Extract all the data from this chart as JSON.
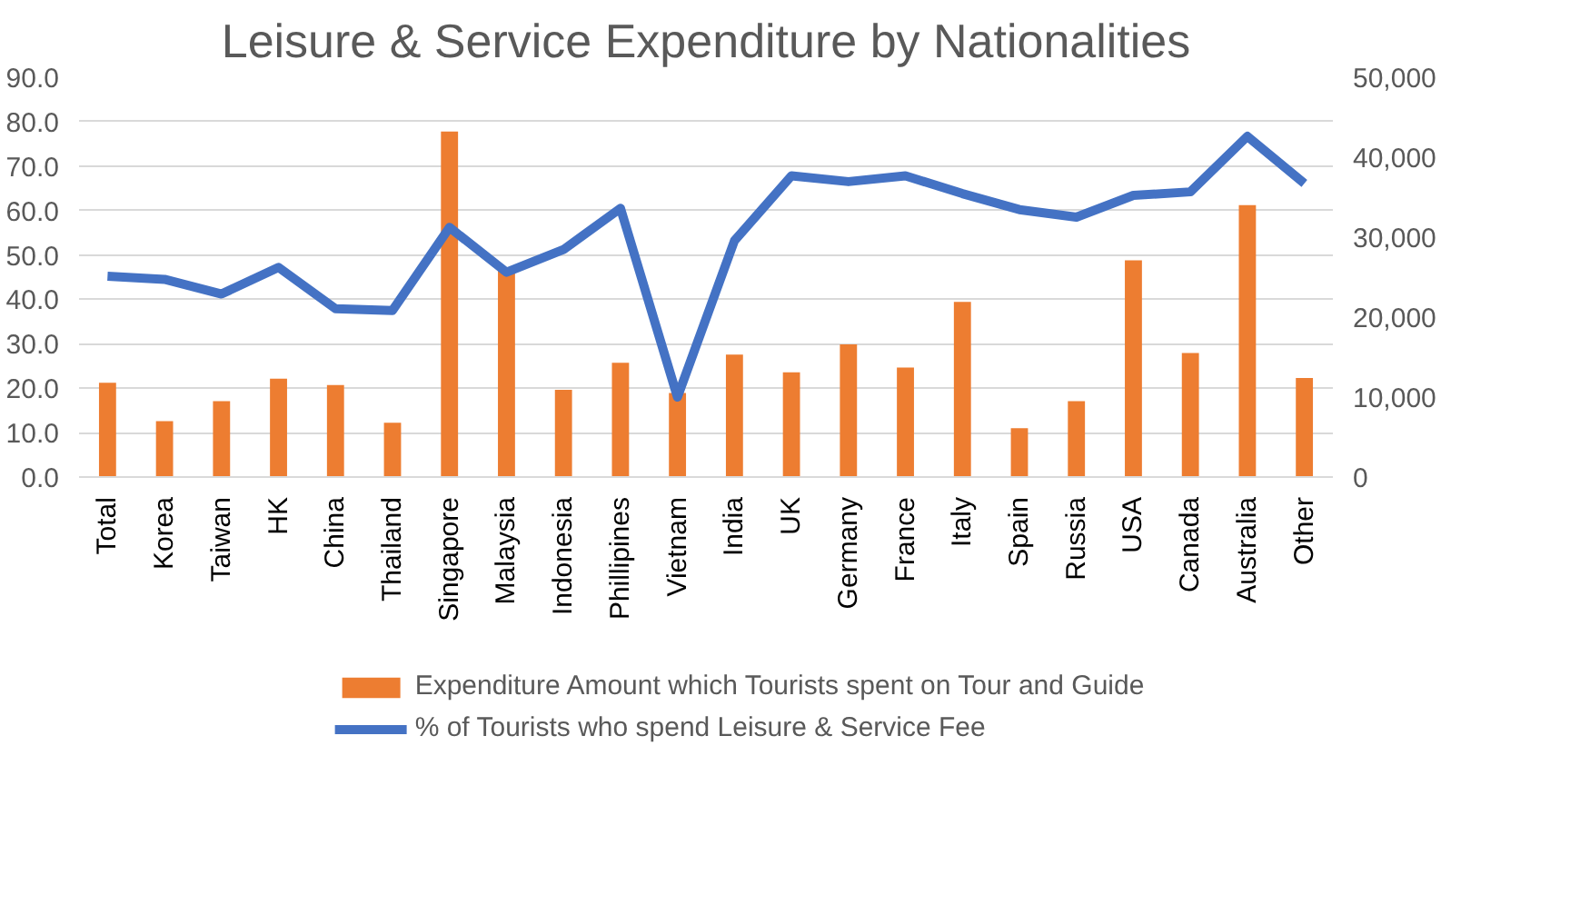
{
  "chart_data": {
    "type": "bar",
    "title": "Leisure & Service Expenditure by Nationalities",
    "categories": [
      "Total",
      "Korea",
      "Taiwan",
      "HK",
      "China",
      "Thailand",
      "Singapore",
      "Malaysia",
      "Indonesia",
      "Phillipines",
      "Vietnam",
      "India",
      "UK",
      "Germany",
      "France",
      "Italy",
      "Spain",
      "Russia",
      "USA",
      "Canada",
      "Australia",
      "Other"
    ],
    "series": [
      {
        "name": "Expenditure Amount which Tourists spent on Tour and Guide",
        "color": "#ed7d31",
        "axis": "y2",
        "values": [
          11800,
          7000,
          9500,
          12300,
          11500,
          6800,
          43200,
          25800,
          10900,
          14300,
          10500,
          15300,
          13100,
          16600,
          13700,
          21900,
          6100,
          9500,
          27100,
          15500,
          34000,
          12400
        ]
      },
      {
        "name": "% of Tourists who spend Leisure & Service Fee",
        "color": "#4472c4",
        "type": "line",
        "values": [
          45.2,
          44.5,
          41.2,
          47.2,
          37.9,
          37.5,
          56.2,
          46.1,
          51.2,
          60.5,
          18,
          53.2,
          67.8,
          66.5,
          67.8,
          63.8,
          60.2,
          58.5,
          63.4,
          64.2,
          76.7,
          66.1
        ]
      }
    ],
    "ylim": [
      0,
      90
    ],
    "yticks": [
      {
        "value": 0,
        "label": "0.0"
      },
      {
        "value": 10,
        "label": "10.0"
      },
      {
        "value": 20,
        "label": "20.0"
      },
      {
        "value": 30,
        "label": "30.0"
      },
      {
        "value": 40,
        "label": "40.0"
      },
      {
        "value": 50,
        "label": "50.0"
      },
      {
        "value": 60,
        "label": "60.0"
      },
      {
        "value": 70,
        "label": "70.0"
      },
      {
        "value": 80,
        "label": "80.0"
      },
      {
        "value": 90,
        "label": "90.0"
      }
    ],
    "y2lim": [
      0,
      50000
    ],
    "y2ticks": [
      0,
      {
        "value": 10000,
        "label": "10,000"
      },
      {
        "value": 20000,
        "label": "20,000"
      },
      {
        "value": 30000,
        "label": "30,000"
      },
      {
        "value": 40000,
        "label": "40,000"
      },
      {
        "value": 50000,
        "label": "50,000"
      }
    ],
    "grid": "y",
    "legend": "bottom"
  }
}
